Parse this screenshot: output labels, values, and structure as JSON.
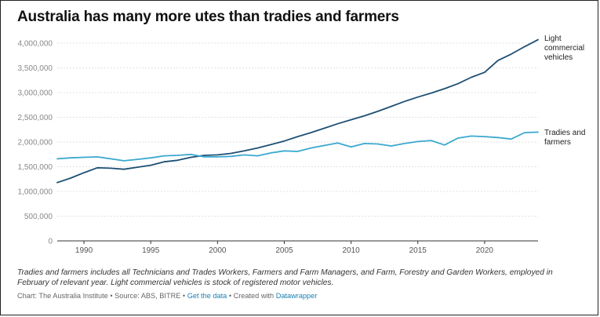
{
  "page": {
    "title": "Australia has many more utes than tradies and farmers",
    "note": "Tradies and farmers includes all Technicians and Trades Workers, Farmers and Farm Managers, and Farm, Forestry and Garden Workers, employed in February of relevant year. Light commercial vehicles is stock of registered motor vehicles.",
    "footer": {
      "chart_by": "Chart: The Australia Institute",
      "sep1": " • ",
      "source": "Source: ABS, BITRE",
      "sep2": " • ",
      "get_data": "Get the data",
      "sep3": " • ",
      "created_with": "Created with ",
      "datawrapper": "Datawrapper"
    }
  },
  "chart_data": {
    "type": "line",
    "title": "Australia has many more utes than tradies and farmers",
    "xlabel": "",
    "ylabel": "",
    "xlim": [
      1988,
      2024
    ],
    "ylim": [
      0,
      4000000
    ],
    "y_ticks": [
      0,
      500000,
      1000000,
      1500000,
      2000000,
      2500000,
      3000000,
      3500000,
      4000000
    ],
    "y_tick_labels": [
      "0",
      "500,000",
      "1,000,000",
      "1,500,000",
      "2,000,000",
      "2,500,000",
      "3,000,000",
      "3,500,000",
      "4,000,000"
    ],
    "x_ticks": [
      1990,
      1995,
      2000,
      2005,
      2010,
      2015,
      2020
    ],
    "x_tick_labels": [
      "1990",
      "1995",
      "2000",
      "2005",
      "2010",
      "2015",
      "2020"
    ],
    "grid": "horizontal",
    "series": [
      {
        "name": "Light commercial vehicles",
        "label_lines": [
          "Light",
          "commercial",
          "vehicles"
        ],
        "color": "#1d4f73",
        "x": [
          1988,
          1989,
          1990,
          1991,
          1992,
          1993,
          1994,
          1995,
          1996,
          1997,
          1998,
          1999,
          2000,
          2001,
          2002,
          2003,
          2004,
          2005,
          2006,
          2007,
          2008,
          2009,
          2010,
          2011,
          2012,
          2013,
          2014,
          2015,
          2016,
          2017,
          2018,
          2019,
          2020,
          2021,
          2022,
          2023,
          2024
        ],
        "values": [
          1180000,
          1270000,
          1380000,
          1480000,
          1470000,
          1450000,
          1490000,
          1530000,
          1600000,
          1630000,
          1690000,
          1730000,
          1740000,
          1770000,
          1820000,
          1880000,
          1950000,
          2020000,
          2110000,
          2190000,
          2280000,
          2370000,
          2450000,
          2530000,
          2620000,
          2720000,
          2820000,
          2910000,
          2990000,
          3080000,
          3180000,
          3310000,
          3410000,
          3650000,
          3780000,
          3930000,
          4070000
        ]
      },
      {
        "name": "Tradies and farmers",
        "label_lines": [
          "Tradies and",
          "farmers"
        ],
        "color": "#3aa8cf",
        "x": [
          1988,
          1989,
          1990,
          1991,
          1992,
          1993,
          1994,
          1995,
          1996,
          1997,
          1998,
          1999,
          2000,
          2001,
          2002,
          2003,
          2004,
          2005,
          2006,
          2007,
          2008,
          2009,
          2010,
          2011,
          2012,
          2013,
          2014,
          2015,
          2016,
          2017,
          2018,
          2019,
          2020,
          2021,
          2022,
          2023,
          2024
        ],
        "values": [
          1660000,
          1680000,
          1690000,
          1700000,
          1660000,
          1620000,
          1650000,
          1680000,
          1720000,
          1730000,
          1750000,
          1700000,
          1700000,
          1710000,
          1740000,
          1720000,
          1780000,
          1820000,
          1810000,
          1880000,
          1930000,
          1980000,
          1900000,
          1970000,
          1960000,
          1920000,
          1970000,
          2010000,
          2030000,
          1940000,
          2080000,
          2120000,
          2110000,
          2090000,
          2060000,
          2190000,
          2200000
        ]
      }
    ],
    "legend": "direct-labels-right"
  }
}
